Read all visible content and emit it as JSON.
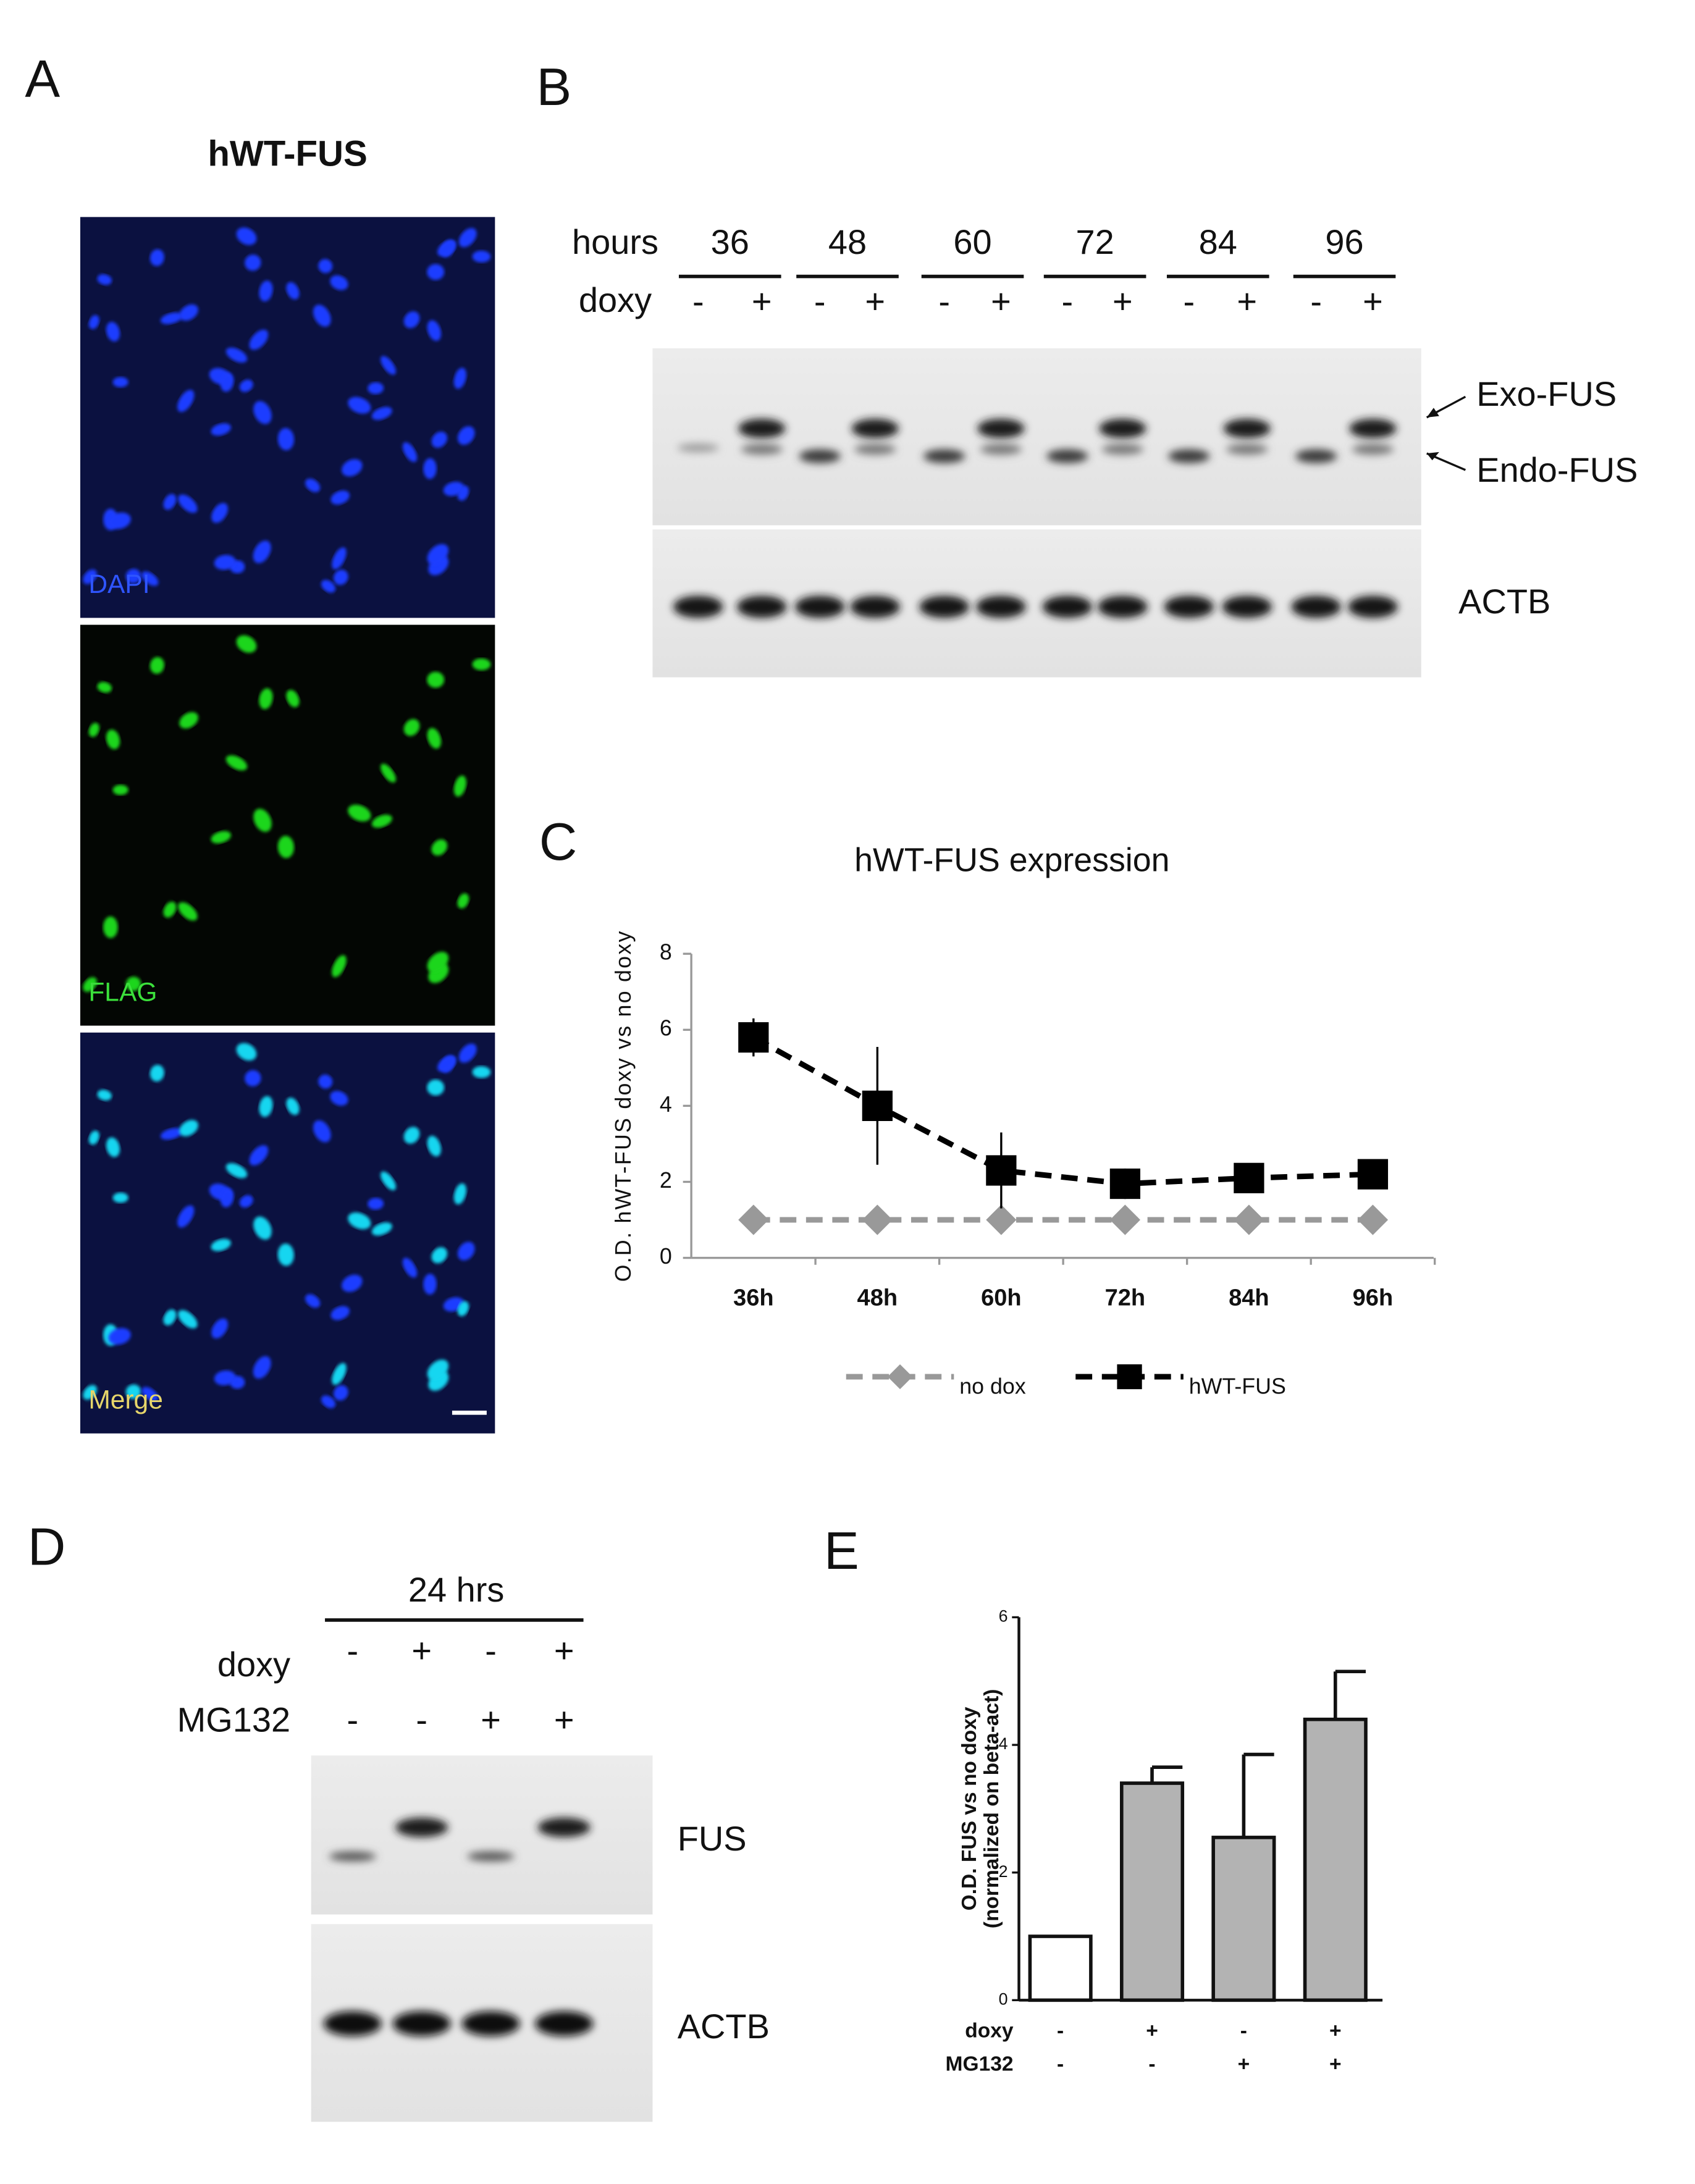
{
  "panel_labels": [
    "A",
    "B",
    "C",
    "D",
    "E"
  ],
  "panel_a": {
    "title": "hWT-FUS",
    "channels": [
      "DAPI",
      "FLAG",
      "Merge"
    ]
  },
  "panel_b": {
    "hours_label": "hours",
    "hours": [
      "36",
      "48",
      "60",
      "72",
      "84",
      "96"
    ],
    "doxy_label": "doxy",
    "doxy": [
      "-",
      "+",
      "-",
      "+",
      "-",
      "+",
      "-",
      "+",
      "-",
      "+",
      "-",
      "+"
    ],
    "bands": [
      "Exo-FUS",
      "Endo-FUS",
      "ACTB"
    ]
  },
  "chart_data": [
    {
      "type": "line",
      "title": "hWT-FUS  expression",
      "ylabel": "O.D. hWT-FUS doxy vs no doxy",
      "categories": [
        "36h",
        "48h",
        "60h",
        "72h",
        "84h",
        "96h"
      ],
      "ylim": [
        0,
        8
      ],
      "yticks": [
        0,
        2,
        4,
        6,
        8
      ],
      "line_style": "dashed",
      "series": [
        {
          "name": "no dox",
          "color": "#999999",
          "marker": "diamond",
          "values": [
            1,
            1,
            1,
            1,
            1,
            1
          ]
        },
        {
          "name": "hWT-FUS",
          "color": "#000000",
          "marker": "square",
          "values": [
            5.8,
            4.0,
            2.3,
            1.95,
            2.1,
            2.2
          ],
          "errors": [
            0.5,
            1.55,
            1.0,
            0.4,
            0.3,
            0.3
          ]
        }
      ]
    },
    {
      "type": "bar",
      "ylabel": [
        "O.D. FUS vs no doxy",
        "(normalized on beta-act)"
      ],
      "ylim": [
        0,
        6
      ],
      "yticks": [
        0,
        2,
        4,
        6
      ],
      "values": [
        1,
        3.4,
        2.55,
        4.4
      ],
      "errors": [
        null,
        0.25,
        1.3,
        0.75
      ],
      "colors": [
        "#ffffff",
        "#b3b3b3",
        "#b3b3b3",
        "#b3b3b3"
      ],
      "conditions": [
        {
          "name": "doxy",
          "signs": [
            "-",
            "+",
            "-",
            "+"
          ]
        },
        {
          "name": "MG132",
          "signs": [
            "-",
            "-",
            "+",
            "+"
          ]
        }
      ]
    }
  ],
  "panel_d": {
    "time": "24 hrs",
    "rows": [
      {
        "name": "doxy",
        "signs": [
          "-",
          "+",
          "-",
          "+"
        ]
      },
      {
        "name": "MG132",
        "signs": [
          "-",
          "-",
          "+",
          "+"
        ]
      }
    ],
    "bands": [
      "FUS",
      "ACTB"
    ]
  }
}
